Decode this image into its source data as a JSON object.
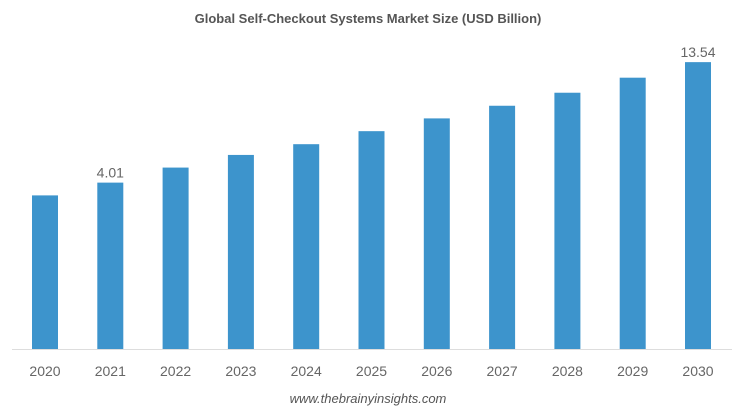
{
  "chart_data": {
    "type": "bar",
    "title": "Global Self-Checkout Systems Market Size (USD Billion)",
    "xlabel": "",
    "ylabel": "",
    "categories": [
      "2020",
      "2021",
      "2022",
      "2023",
      "2024",
      "2025",
      "2026",
      "2027",
      "2028",
      "2029",
      "2030"
    ],
    "values": [
      3.0,
      4.01,
      5.2,
      6.2,
      7.05,
      8.08,
      9.09,
      10.09,
      11.12,
      12.31,
      13.54
    ],
    "data_labels": {
      "1": "4.01",
      "10": "13.54"
    },
    "ylim": [
      -9.15,
      14.5
    ],
    "grid": false,
    "bar_color": "#3d94cc",
    "footer": "www.thebrainyinsights.com"
  }
}
